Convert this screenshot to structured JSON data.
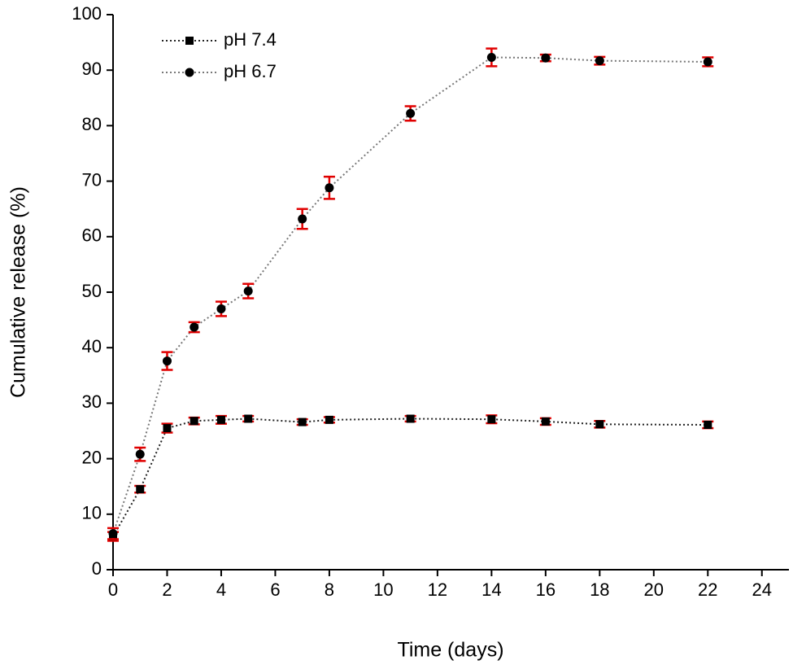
{
  "chart_data": {
    "type": "line",
    "x_label": "Time (days)",
    "y_label": "Cumulative release (%)",
    "x": [
      0,
      1,
      2,
      3,
      4,
      5,
      7,
      8,
      11,
      14,
      16,
      18,
      22
    ],
    "series": [
      {
        "name": "pH 7.4",
        "color": "#000000",
        "line_color": "#222222",
        "marker": "square",
        "values": [
          6,
          14.5,
          25.5,
          26.8,
          27,
          27.2,
          26.6,
          27,
          27.2,
          27.1,
          26.7,
          26.2,
          26.1
        ],
        "errors": [
          0.8,
          0.6,
          0.8,
          0.6,
          0.7,
          0.5,
          0.5,
          0.5,
          0.5,
          0.7,
          0.6,
          0.6,
          0.6
        ]
      },
      {
        "name": "pH 6.7",
        "color": "#000000",
        "line_color": "#777777",
        "marker": "circle",
        "values": [
          6.5,
          20.8,
          37.6,
          43.7,
          47,
          50.2,
          63.2,
          68.8,
          82.2,
          92.3,
          92.2,
          91.7,
          91.5
        ],
        "errors": [
          1,
          1.2,
          1.6,
          0.9,
          1.3,
          1.3,
          1.8,
          2,
          1.3,
          1.6,
          0.6,
          0.7,
          0.8
        ]
      }
    ],
    "error_color": "#e00000",
    "xlim": [
      0,
      25
    ],
    "xticks": [
      0,
      2,
      4,
      6,
      8,
      10,
      12,
      14,
      16,
      18,
      20,
      22,
      24
    ],
    "ylim": [
      0,
      100
    ],
    "yticks": [
      0,
      10,
      20,
      30,
      40,
      50,
      60,
      70,
      80,
      90,
      100
    ],
    "grid": false,
    "legend": "upper left"
  }
}
